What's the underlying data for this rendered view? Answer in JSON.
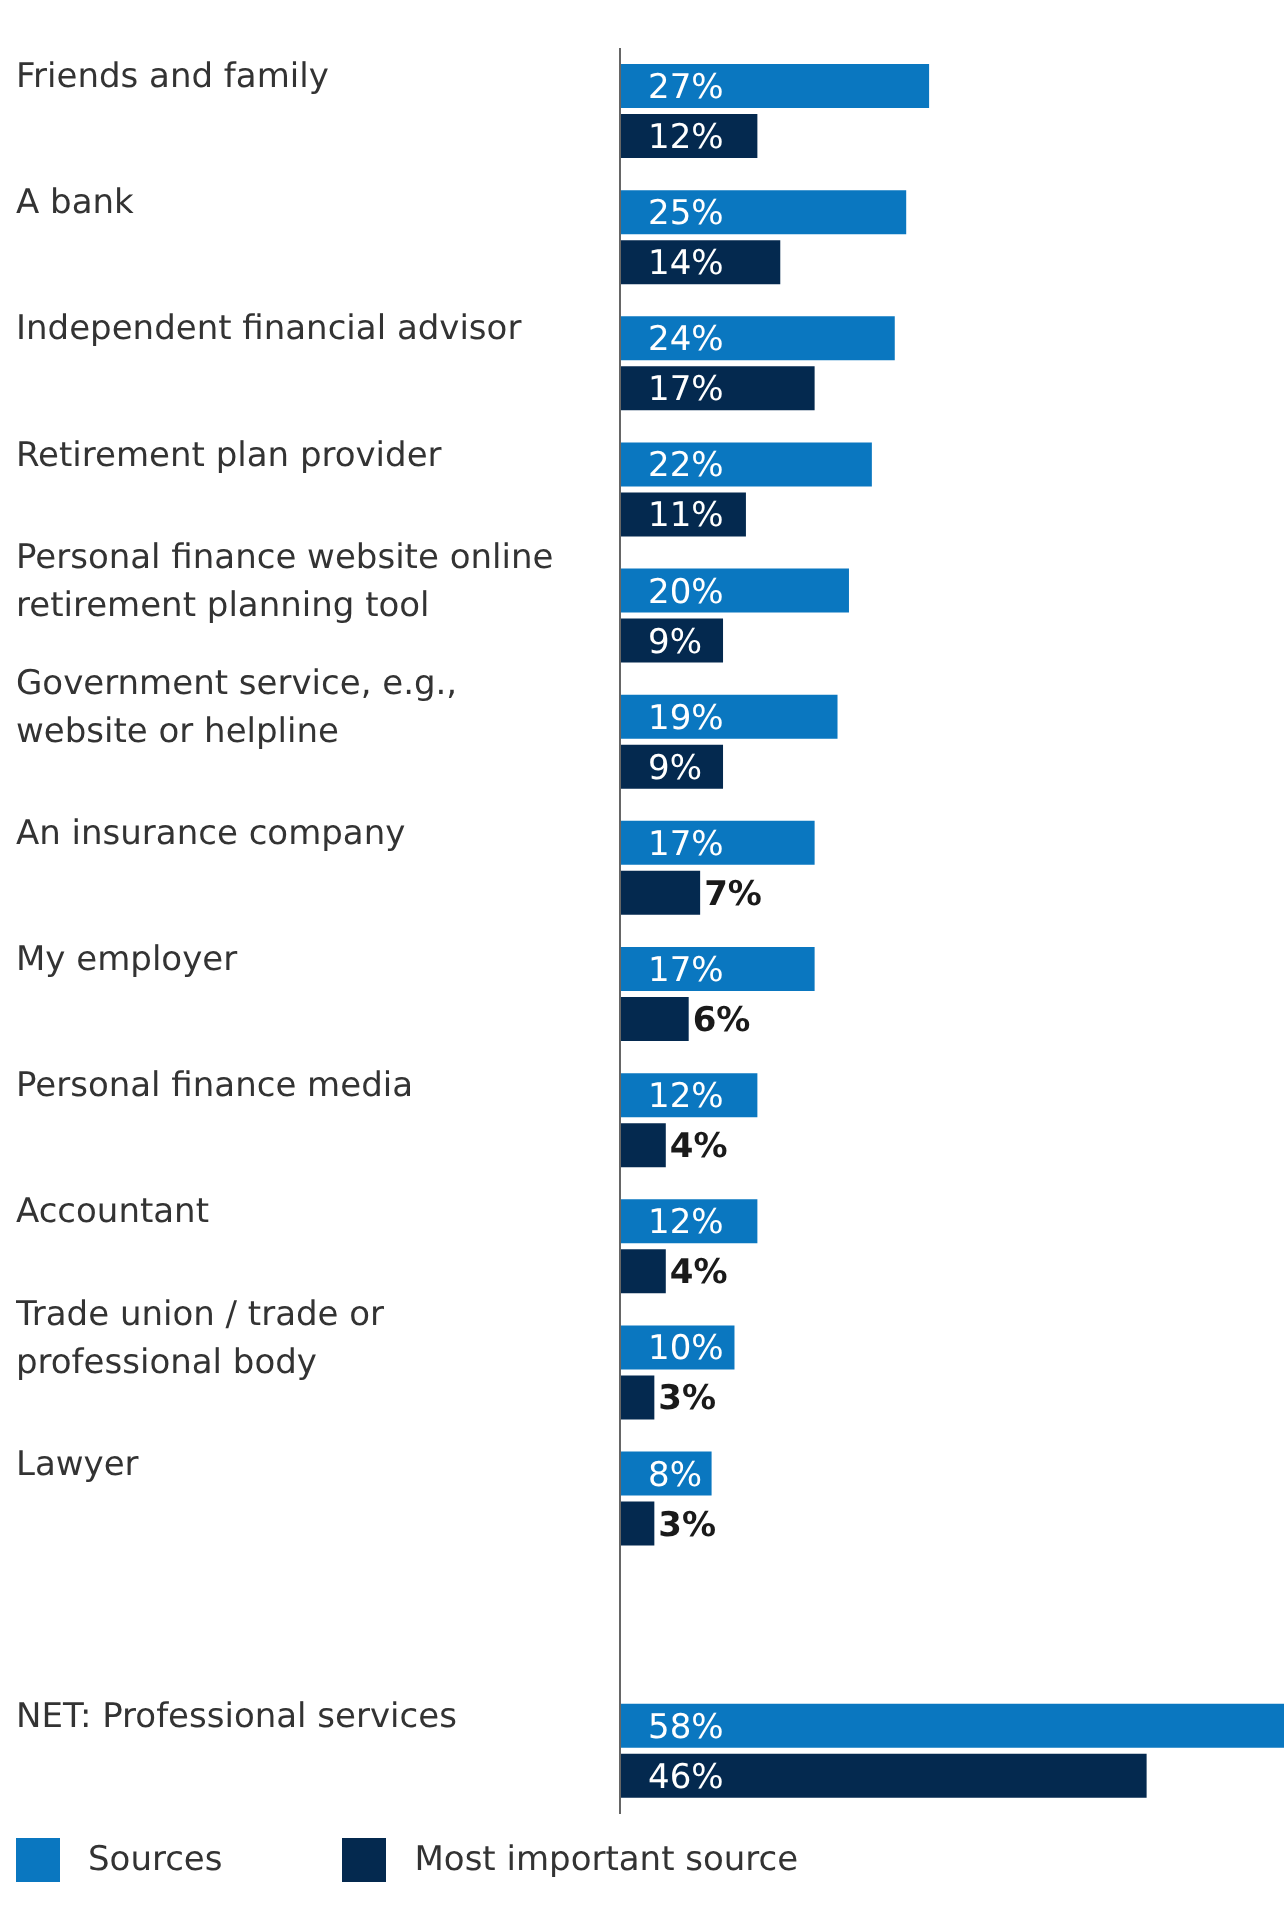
{
  "chart_data": {
    "type": "bar",
    "orientation": "horizontal",
    "legend": "bottom",
    "categories": [
      "Friends and family",
      "A bank",
      "Independent financial advisor",
      "Retirement plan provider",
      "Personal finance website online retirement planning tool",
      "Government service, e.g., website or helpline",
      "An insurance company",
      "My employer",
      "Personal finance media",
      "Accountant",
      "Trade union / trade or professional body",
      "Lawyer",
      null,
      "NET: Professional services"
    ],
    "series": [
      {
        "name": "Sources",
        "color": "#0a77c0",
        "values": [
          27,
          25,
          24,
          22,
          20,
          19,
          17,
          17,
          12,
          12,
          10,
          8,
          null,
          58
        ],
        "value_labels": [
          "27%",
          "25%",
          "24%",
          "22%",
          "20%",
          "19%",
          "17%",
          "17%",
          "12%",
          "12%",
          "10%",
          "8%",
          null,
          "58%"
        ]
      },
      {
        "name": "Most important source",
        "color": "#04294f",
        "values": [
          12,
          14,
          17,
          11,
          9,
          9,
          7,
          6,
          4,
          4,
          3,
          3,
          null,
          46
        ],
        "value_labels": [
          "12%",
          "14%",
          "17%",
          "11%",
          "9%",
          "9%",
          "7%",
          "6%",
          "4%",
          "4%",
          "3%",
          "3%",
          null,
          "46%"
        ]
      }
    ]
  }
}
